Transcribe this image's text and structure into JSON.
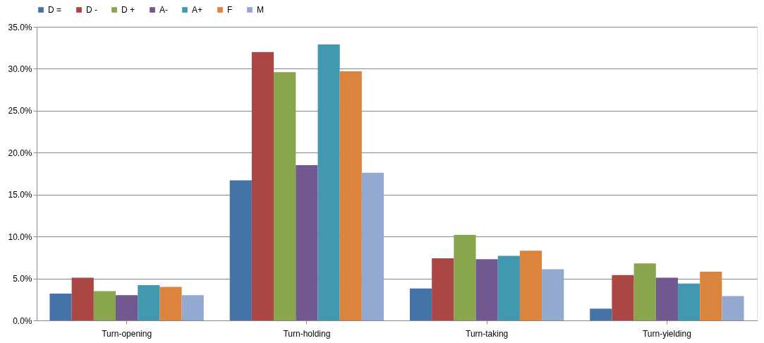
{
  "chart_data": {
    "type": "bar",
    "categories": [
      "Turn-opening",
      "Turn-holding",
      "Turn-taking",
      "Turn-yielding"
    ],
    "series": [
      {
        "name": "D =",
        "color": "#4572a7",
        "values": [
          3.2,
          16.7,
          3.8,
          1.4
        ]
      },
      {
        "name": "D -",
        "color": "#aa4643",
        "values": [
          5.1,
          32.0,
          7.4,
          5.4
        ]
      },
      {
        "name": "D +",
        "color": "#89a54e",
        "values": [
          3.5,
          29.6,
          10.2,
          6.8
        ]
      },
      {
        "name": "A-",
        "color": "#71588f",
        "values": [
          3.0,
          18.5,
          7.3,
          5.1
        ]
      },
      {
        "name": "A+",
        "color": "#4198af",
        "values": [
          4.2,
          32.9,
          7.7,
          4.4
        ]
      },
      {
        "name": "F",
        "color": "#db843d",
        "values": [
          4.0,
          29.7,
          8.3,
          5.8
        ]
      },
      {
        "name": "M",
        "color": "#93a9cf",
        "values": [
          3.0,
          17.6,
          6.1,
          2.9
        ]
      }
    ],
    "ylim": [
      0,
      35
    ],
    "yticks": [
      {
        "value": 0,
        "label": "0.0%"
      },
      {
        "value": 5,
        "label": "5.0%"
      },
      {
        "value": 10,
        "label": "10.0%"
      },
      {
        "value": 15,
        "label": "15.0%"
      },
      {
        "value": 20,
        "label": "20.0%"
      },
      {
        "value": 25,
        "label": "25.0%"
      },
      {
        "value": 30,
        "label": "30.0%"
      },
      {
        "value": 35,
        "label": "35.0%"
      }
    ],
    "grid": "y",
    "legend": "top"
  }
}
